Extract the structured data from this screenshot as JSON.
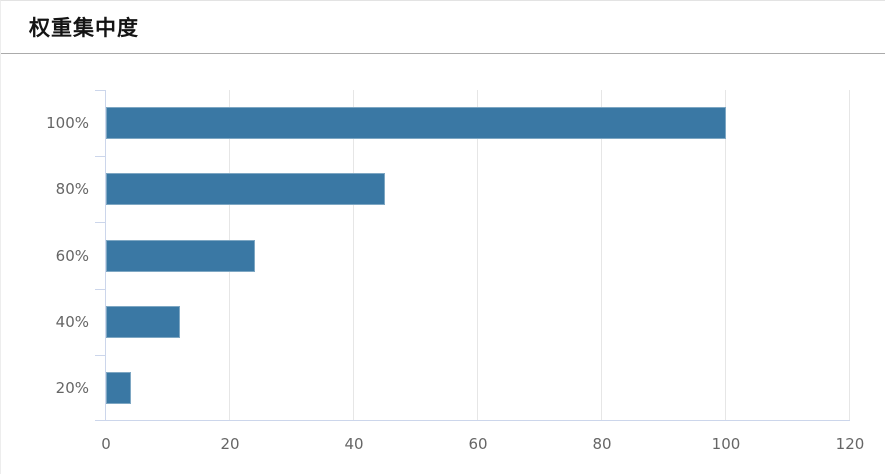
{
  "header": {
    "title": "权重集中度"
  },
  "chart_data": {
    "type": "bar",
    "orientation": "horizontal",
    "title": "权重集中度",
    "categories": [
      "100%",
      "80%",
      "60%",
      "40%",
      "20%"
    ],
    "values": [
      100,
      45,
      24,
      12,
      4
    ],
    "xlabel": "",
    "ylabel": "",
    "xlim": [
      0,
      120
    ],
    "x_ticks": [
      0,
      20,
      40,
      60,
      80,
      100,
      120
    ],
    "x_tick_labels": [
      "0",
      "20",
      "40",
      "60",
      "80",
      "100",
      "120"
    ],
    "grid": true,
    "legend": false,
    "colors": {
      "bar": "#3a78a4",
      "axis_line": "#ccd6eb",
      "gridline": "#e6e6e6",
      "label": "#666666",
      "title": "#141414",
      "divider": "#ababab"
    }
  }
}
